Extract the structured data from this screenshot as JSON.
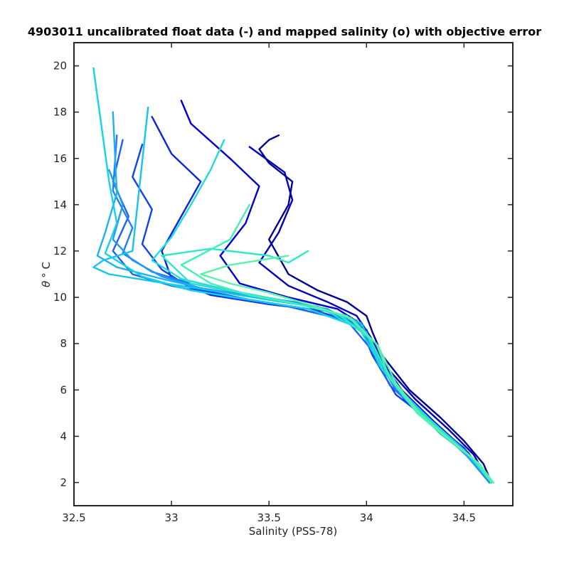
{
  "chart_data": {
    "type": "line",
    "title": "4903011 uncalibrated float data (-) and mapped salinity (o) with objective error",
    "xlabel": "Salinity (PSS-78)",
    "ylabel_symbol": "θ",
    "ylabel_unit": "° C",
    "xlim": [
      32.5,
      34.75
    ],
    "ylim": [
      1,
      21
    ],
    "xticks": [
      32.5,
      33,
      33.5,
      34,
      34.5
    ],
    "xtick_labels": [
      "32.5",
      "33",
      "33.5",
      "34",
      "34.5"
    ],
    "yticks": [
      2,
      4,
      6,
      8,
      10,
      12,
      14,
      16,
      18,
      20
    ],
    "ytick_labels": [
      "2",
      "4",
      "6",
      "8",
      "10",
      "12",
      "14",
      "16",
      "18",
      "20"
    ],
    "grid": false,
    "colormap": [
      "#00008f",
      "#0000d0",
      "#1040f0",
      "#1e7ef5",
      "#1fb0f0",
      "#14d2e8",
      "#30e6c8",
      "#5af2a8"
    ],
    "series": [
      {
        "color": "#00008f",
        "x": [
          34.64,
          34.6,
          34.5,
          34.38,
          34.22,
          34.08,
          34.03,
          34.0,
          33.9,
          33.75,
          33.6,
          33.5,
          33.6,
          33.62,
          33.5,
          33.45,
          33.5,
          33.55
        ],
        "y": [
          2.0,
          2.8,
          3.8,
          4.8,
          6.0,
          7.5,
          8.5,
          9.2,
          9.8,
          10.3,
          11.0,
          12.5,
          14.0,
          15.0,
          15.8,
          16.4,
          16.8,
          17.0
        ]
      },
      {
        "color": "#0000b8",
        "x": [
          34.63,
          34.55,
          34.42,
          34.25,
          34.1,
          34.02,
          33.95,
          33.8,
          33.6,
          33.45,
          33.55,
          33.62,
          33.58,
          33.4
        ],
        "y": [
          2.0,
          3.2,
          4.3,
          5.6,
          7.0,
          8.3,
          9.2,
          9.8,
          10.5,
          11.5,
          12.8,
          14.2,
          15.4,
          16.5
        ]
      },
      {
        "color": "#0000d0",
        "x": [
          34.62,
          34.52,
          34.35,
          34.18,
          34.05,
          33.98,
          33.85,
          33.6,
          33.35,
          33.25,
          33.38,
          33.45,
          33.3,
          33.1,
          33.05
        ],
        "y": [
          2.1,
          3.3,
          4.6,
          6.0,
          7.6,
          8.8,
          9.5,
          10.0,
          10.6,
          11.8,
          13.2,
          14.8,
          16.0,
          17.5,
          18.5
        ]
      },
      {
        "color": "#0a24e0",
        "x": [
          34.64,
          34.55,
          34.4,
          34.2,
          34.07,
          34.0,
          33.8,
          33.5,
          33.2,
          33.0,
          32.95,
          33.05,
          33.15,
          33.0,
          32.9
        ],
        "y": [
          2.0,
          3.0,
          4.2,
          5.5,
          7.2,
          8.6,
          9.4,
          9.7,
          10.1,
          10.8,
          12.0,
          13.5,
          15.0,
          16.2,
          17.8
        ]
      },
      {
        "color": "#1040f0",
        "x": [
          34.63,
          34.5,
          34.35,
          34.15,
          34.03,
          33.96,
          33.7,
          33.4,
          33.1,
          32.95,
          32.85,
          32.9,
          32.8,
          32.85
        ],
        "y": [
          2.0,
          3.5,
          4.5,
          5.8,
          7.5,
          8.9,
          9.5,
          9.9,
          10.4,
          11.2,
          12.3,
          13.8,
          15.2,
          16.6
        ]
      },
      {
        "color": "#1e60f2",
        "x": [
          34.64,
          34.48,
          34.3,
          34.12,
          34.02,
          33.9,
          33.6,
          33.3,
          33.0,
          32.8,
          32.7,
          32.78,
          32.7,
          32.75
        ],
        "y": [
          2.0,
          3.6,
          4.8,
          6.2,
          7.8,
          9.0,
          9.6,
          10.0,
          10.5,
          11.0,
          12.0,
          13.5,
          15.0,
          16.8
        ]
      },
      {
        "color": "#1e7ef5",
        "x": [
          34.63,
          34.5,
          34.32,
          34.15,
          34.04,
          33.95,
          33.7,
          33.4,
          33.1,
          32.9,
          32.75,
          32.8,
          32.7,
          32.72
        ],
        "y": [
          2.0,
          3.3,
          4.6,
          6.0,
          7.6,
          9.0,
          9.7,
          10.1,
          10.6,
          11.1,
          11.9,
          13.0,
          14.6,
          17.0
        ]
      },
      {
        "color": "#1f9af2",
        "x": [
          34.64,
          34.52,
          34.36,
          34.18,
          34.05,
          33.98,
          33.75,
          33.45,
          33.15,
          32.95,
          32.8,
          32.7,
          32.75,
          32.68
        ],
        "y": [
          2.0,
          3.1,
          4.4,
          5.9,
          7.4,
          8.8,
          9.6,
          10.0,
          10.4,
          10.9,
          11.6,
          12.5,
          14.0,
          15.5
        ]
      },
      {
        "color": "#1fb0f0",
        "x": [
          34.65,
          34.55,
          34.38,
          34.2,
          34.06,
          34.0,
          33.8,
          33.5,
          33.2,
          32.95,
          32.72,
          32.62,
          32.66,
          32.72,
          32.7
        ],
        "y": [
          2.0,
          3.0,
          4.1,
          5.6,
          7.1,
          8.5,
          9.5,
          9.9,
          10.3,
          10.8,
          11.3,
          11.8,
          12.8,
          14.5,
          18.0
        ]
      },
      {
        "color": "#14c4ec",
        "x": [
          34.64,
          34.5,
          34.33,
          34.16,
          34.04,
          33.97,
          33.72,
          33.42,
          33.12,
          32.9,
          32.68,
          32.6,
          32.65,
          32.8,
          32.88
        ],
        "y": [
          2.0,
          3.4,
          4.7,
          6.1,
          7.7,
          8.9,
          9.6,
          10.0,
          10.4,
          10.7,
          11.0,
          11.3,
          11.6,
          12.0,
          18.2
        ]
      },
      {
        "color": "#14d2e8",
        "x": [
          34.65,
          34.52,
          34.35,
          34.18,
          34.05,
          33.96,
          33.7,
          33.4,
          33.1,
          32.85,
          32.66,
          32.72,
          32.68,
          32.6
        ],
        "y": [
          2.0,
          3.2,
          4.5,
          5.9,
          7.4,
          8.7,
          9.5,
          9.9,
          10.3,
          10.9,
          11.9,
          13.2,
          15.0,
          19.9
        ]
      },
      {
        "color": "#20dcd8",
        "x": [
          34.64,
          34.55,
          34.38,
          34.22,
          34.08,
          34.0,
          33.8,
          33.55,
          33.3,
          33.05,
          32.9,
          33.0,
          33.1,
          33.2,
          33.27
        ],
        "y": [
          2.0,
          3.0,
          4.3,
          5.5,
          6.9,
          8.4,
          9.4,
          9.9,
          10.3,
          10.8,
          11.6,
          12.6,
          14.0,
          15.5,
          16.8
        ]
      },
      {
        "color": "#30e6c8",
        "x": [
          34.65,
          34.56,
          34.4,
          34.24,
          34.1,
          34.02,
          33.85,
          33.6,
          33.35,
          33.1,
          32.95,
          33.2,
          33.5,
          33.6,
          33.7
        ],
        "y": [
          2.0,
          2.9,
          4.1,
          5.3,
          6.8,
          8.2,
          9.3,
          9.8,
          10.2,
          10.6,
          11.8,
          12.1,
          11.8,
          11.5,
          12.0
        ]
      },
      {
        "color": "#44eeb8",
        "x": [
          34.64,
          34.55,
          34.4,
          34.26,
          34.12,
          34.05,
          33.9,
          33.65,
          33.4,
          33.2,
          33.05,
          33.3,
          33.4
        ],
        "y": [
          2.0,
          3.0,
          4.0,
          5.0,
          6.5,
          8.0,
          9.2,
          9.7,
          10.1,
          10.6,
          11.4,
          12.5,
          14.0
        ]
      },
      {
        "color": "#5af2a8",
        "x": [
          34.65,
          34.58,
          34.42,
          34.28,
          34.15,
          34.06,
          33.92,
          33.7,
          33.5,
          33.3,
          33.15,
          33.3,
          33.6
        ],
        "y": [
          2.0,
          2.8,
          3.9,
          4.9,
          6.3,
          7.9,
          9.1,
          9.7,
          10.2,
          10.6,
          11.0,
          11.4,
          11.8
        ]
      }
    ]
  }
}
